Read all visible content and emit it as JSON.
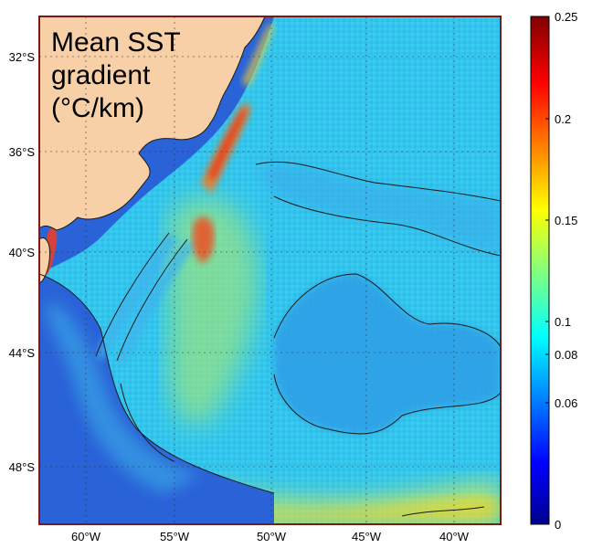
{
  "map": {
    "title_lines": [
      "Mean SST",
      "gradient",
      "(°C/km)"
    ],
    "lat_labels": [
      "32°S",
      "36°S",
      "40°S",
      "44°S",
      "48°S"
    ],
    "lon_labels": [
      "60°W",
      "55°W",
      "50°W",
      "45°W",
      "40°W"
    ],
    "colors": {
      "land": "#f8d0a8",
      "frame": "#7a1a12",
      "ocean_base": "#33c8f0",
      "shelf": "#2a62d8",
      "front": "#f0e030",
      "front_hot": "#e82a18",
      "contour": "#1a1a1a"
    }
  },
  "colorbar": {
    "range": [
      0,
      0.25
    ],
    "tick_labels": [
      "0.25",
      "0.2",
      "0.15",
      "0.1",
      "0.08",
      "0.06",
      "0"
    ],
    "tick_values": [
      0.25,
      0.2,
      0.15,
      0.1,
      0.08,
      0.06,
      0
    ],
    "colormap": "jet"
  }
}
